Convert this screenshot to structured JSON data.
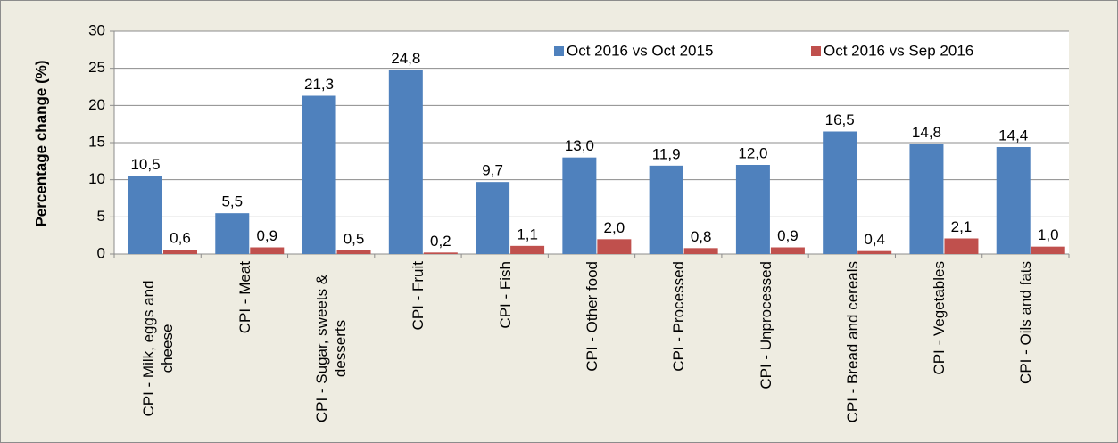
{
  "chart_data": {
    "type": "bar",
    "y_label": "Percentage change (%)",
    "categories": [
      "CPI - Milk, eggs and cheese",
      "CPI - Meat",
      "CPI - Sugar, sweets & desserts",
      "CPI - Fruit",
      "CPI - Fish",
      "CPI - Other food",
      "CPI - Processed",
      "CPI - Unprocessed",
      "CPI - Bread and cereals",
      "CPI - Vegetables",
      "CPI - Oils and fats"
    ],
    "series": [
      {
        "name": "Oct 2016 vs Oct 2015",
        "color": "#4f81bd",
        "values": [
          10.5,
          5.5,
          21.3,
          24.8,
          9.7,
          13.0,
          11.9,
          12.0,
          16.5,
          14.8,
          14.4
        ],
        "value_labels": [
          "10,5",
          "5,5",
          "21,3",
          "24,8",
          "9,7",
          "13,0",
          "11,9",
          "12,0",
          "16,5",
          "14,8",
          "14,4"
        ]
      },
      {
        "name": "Oct 2016 vs Sep 2016",
        "color": "#c0504d",
        "values": [
          0.6,
          0.9,
          0.5,
          0.2,
          1.1,
          2.0,
          0.8,
          0.9,
          0.4,
          2.1,
          1.0
        ],
        "value_labels": [
          "0,6",
          "0,9",
          "0,5",
          "0,2",
          "1,1",
          "2,0",
          "0,8",
          "0,9",
          "0,4",
          "2,1",
          "1,0"
        ]
      }
    ],
    "ylim": [
      0,
      30
    ],
    "yticks": [
      0,
      5,
      10,
      15,
      20,
      25,
      30
    ],
    "grid": true,
    "legend": "upper right"
  }
}
